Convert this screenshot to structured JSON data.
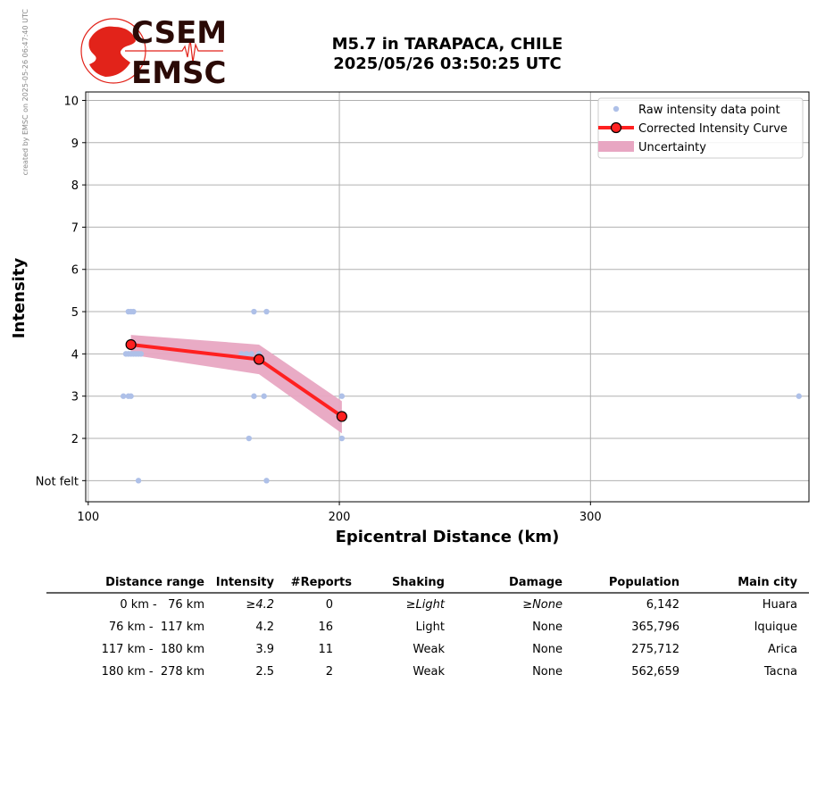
{
  "credit": "created by EMSC on 2025-05-26 06:47:40 UTC",
  "logo": {
    "line1": "CSEM",
    "line2": "EMSC",
    "red": "#e2231a",
    "dark": "#2b0a06"
  },
  "title": {
    "line1": "M5.7 in TARAPACA, CHILE",
    "line2": "2025/05/26 03:50:25 UTC"
  },
  "chart_data": {
    "type": "line",
    "xlabel": "Epicentral Distance (km)",
    "ylabel": "Intensity",
    "xlim": [
      99,
      387
    ],
    "ylim": [
      0.5,
      10.2
    ],
    "x_ticks": [
      100,
      200,
      300
    ],
    "y_ticks": [
      {
        "value": 1,
        "label": "Not felt"
      },
      {
        "value": 2,
        "label": "2"
      },
      {
        "value": 3,
        "label": "3"
      },
      {
        "value": 4,
        "label": "4"
      },
      {
        "value": 5,
        "label": "5"
      },
      {
        "value": 6,
        "label": "6"
      },
      {
        "value": 7,
        "label": "7"
      },
      {
        "value": 8,
        "label": "8"
      },
      {
        "value": 9,
        "label": "9"
      },
      {
        "value": 10,
        "label": "10"
      }
    ],
    "grid": true,
    "legend_position": "top-right",
    "series": [
      {
        "name": "Raw intensity data point",
        "kind": "scatter",
        "color": "#aec0e8",
        "points": [
          [
            116,
            5
          ],
          [
            117,
            5
          ],
          [
            118,
            5
          ],
          [
            115,
            4
          ],
          [
            116,
            4
          ],
          [
            117,
            4
          ],
          [
            118,
            4
          ],
          [
            119,
            4
          ],
          [
            120,
            4
          ],
          [
            121,
            4
          ],
          [
            114,
            3
          ],
          [
            116,
            3
          ],
          [
            117,
            3
          ],
          [
            120,
            1
          ],
          [
            166,
            5
          ],
          [
            171,
            5
          ],
          [
            161,
            4
          ],
          [
            163,
            4
          ],
          [
            165,
            4
          ],
          [
            168,
            4
          ],
          [
            166,
            3
          ],
          [
            170,
            3
          ],
          [
            164,
            2
          ],
          [
            171,
            1
          ],
          [
            201,
            3
          ],
          [
            201,
            2
          ],
          [
            383,
            3
          ]
        ]
      },
      {
        "name": "Corrected Intensity Curve",
        "kind": "line",
        "color": "#ff2020",
        "marker_edge": "#000000",
        "points": [
          [
            117,
            4.22
          ],
          [
            168,
            3.87
          ],
          [
            201,
            2.52
          ]
        ]
      },
      {
        "name": "Uncertainty",
        "kind": "band",
        "color": "#e8a6c2",
        "x": [
          117,
          168,
          201
        ],
        "lower": [
          3.98,
          3.52,
          2.12
        ],
        "upper": [
          4.45,
          4.22,
          2.88
        ]
      }
    ]
  },
  "table": {
    "headers": [
      "Distance range",
      "Intensity",
      "#Reports",
      "Shaking",
      "Damage",
      "Population",
      "Main city"
    ],
    "rows": [
      [
        "0 km -   76 km",
        "≥4.2",
        "0",
        "≥Light",
        "≥None",
        "6,142",
        "Huara"
      ],
      [
        "76 km -  117 km",
        "4.2",
        "16",
        "Light",
        "None",
        "365,796",
        "Iquique"
      ],
      [
        "117 km -  180 km",
        "3.9",
        "11",
        "Weak",
        "None",
        "275,712",
        "Arica"
      ],
      [
        "180 km -  278 km",
        "2.5",
        "2",
        "Weak",
        "None",
        "562,659",
        "Tacna"
      ]
    ],
    "italic_row": 0
  }
}
